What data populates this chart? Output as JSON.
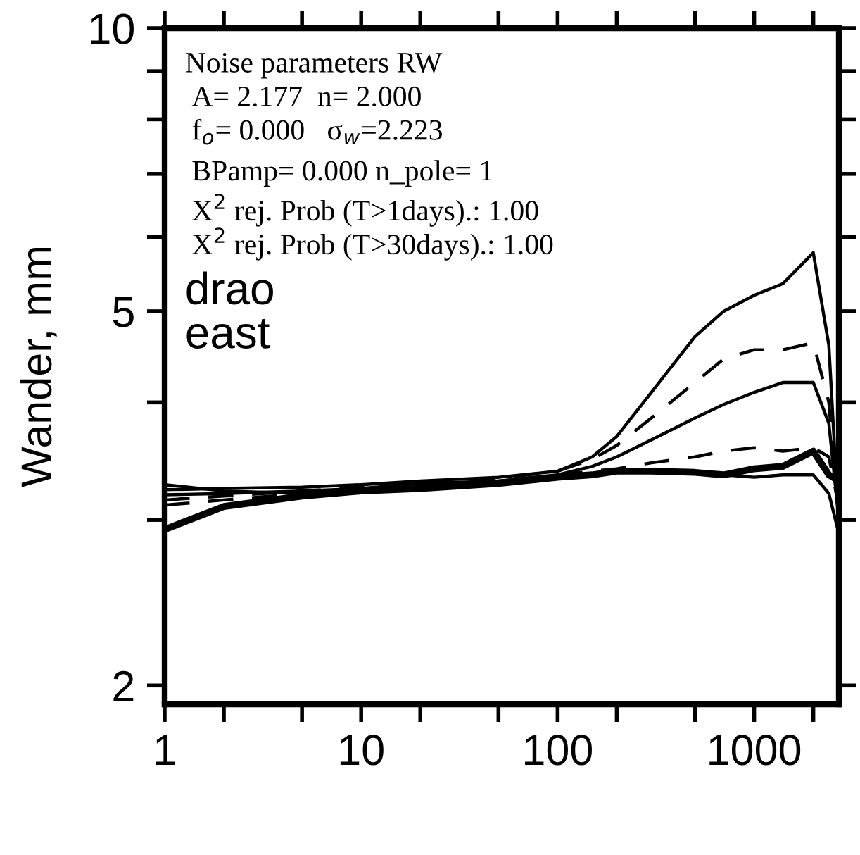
{
  "chart_data": {
    "type": "line",
    "ylabel": "Wander, mm",
    "log": "xy",
    "grid": false,
    "tick_labels": "xy",
    "xlim": [
      1,
      2700
    ],
    "ylim": [
      1.91,
      10
    ],
    "xticks": [
      1,
      {
        "value": 2,
        "label": null
      },
      {
        "value": 5,
        "label": null
      },
      10,
      {
        "value": 20,
        "label": null
      },
      {
        "value": 50,
        "label": null
      },
      100,
      {
        "value": 200,
        "label": null
      },
      {
        "value": 500,
        "label": null
      },
      1000,
      {
        "value": 2000,
        "label": null
      }
    ],
    "yticks": [
      2,
      {
        "value": 3,
        "label": null
      },
      {
        "value": 4,
        "label": null
      },
      5,
      {
        "value": 6,
        "label": null
      },
      {
        "value": 7,
        "label": null
      },
      {
        "value": 8,
        "label": null
      },
      {
        "value": 9,
        "label": null
      },
      10
    ],
    "x": [
      1,
      2,
      5,
      10,
      20,
      50,
      100,
      150,
      200,
      300,
      500,
      700,
      1000,
      1400,
      2000,
      2400,
      2700
    ],
    "annotations": [
      "Noise parameters RW",
      "A= 2.177  n= 2.000",
      "f$_{o}$= 0.000   σ$_{w}$=2.223",
      "BPamp= 0.000 n_pole= 1",
      "X$^{2}$ rej. Prob (T>1days).: 1.00",
      "X$^{2}$ rej. Prob (T>30days).: 1.00",
      "drao",
      "east"
    ],
    "series": [
      {
        "color": "#000000",
        "line_style": "solid",
        "values": [
          3.23,
          3.24,
          3.25,
          3.27,
          3.3,
          3.33,
          3.38,
          3.5,
          3.68,
          4.1,
          4.7,
          5.0,
          5.2,
          5.35,
          5.77,
          4.6,
          2.95
        ]
      },
      {
        "color": "#000000",
        "line_style": "dashed",
        "values": [
          3.15,
          3.18,
          3.22,
          3.25,
          3.28,
          3.32,
          3.38,
          3.48,
          3.6,
          3.85,
          4.2,
          4.45,
          4.55,
          4.55,
          4.63,
          4.0,
          3.0
        ]
      },
      {
        "color": "#000000",
        "line_style": "solid",
        "values": [
          3.19,
          3.2,
          3.22,
          3.24,
          3.28,
          3.3,
          3.35,
          3.42,
          3.5,
          3.65,
          3.85,
          3.98,
          4.1,
          4.2,
          4.2,
          3.8,
          3.0
        ]
      },
      {
        "color": "#000000",
        "line_style": "dashed",
        "values": [
          3.11,
          3.15,
          3.2,
          3.24,
          3.27,
          3.3,
          3.35,
          3.38,
          3.4,
          3.45,
          3.5,
          3.55,
          3.58,
          3.55,
          3.58,
          3.5,
          3.1
        ]
      },
      {
        "color": "#000000",
        "line_style": "solid",
        "values": [
          3.27,
          3.22,
          3.2,
          3.22,
          3.25,
          3.3,
          3.33,
          3.35,
          3.37,
          3.38,
          3.38,
          3.35,
          3.33,
          3.35,
          3.35,
          3.2,
          2.9
        ]
      },
      {
        "color": "#000000",
        "line_style": "solid",
        "values": [
          2.93,
          3.1,
          3.18,
          3.22,
          3.24,
          3.28,
          3.33,
          3.35,
          3.38,
          3.38,
          3.37,
          3.35,
          3.4,
          3.42,
          3.55,
          3.35,
          3.3
        ]
      }
    ]
  }
}
